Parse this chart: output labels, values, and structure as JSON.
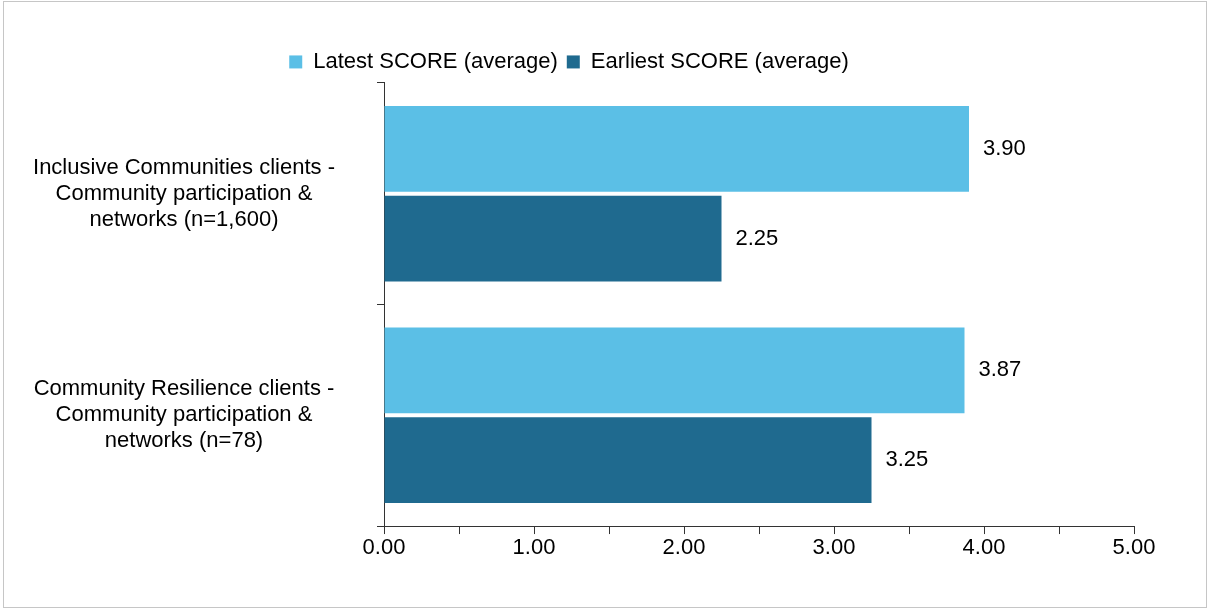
{
  "chart_data": {
    "type": "bar",
    "orientation": "horizontal",
    "categories": [
      "Inclusive Communities clients - Community participation & networks (n=1,600)",
      "Community Resilience clients - Community participation & networks (n=78)"
    ],
    "series": [
      {
        "name": "Latest SCORE (average)",
        "color": "#5bbfe6",
        "values": [
          3.9,
          3.87
        ],
        "value_labels": [
          "3.90",
          "3.87"
        ]
      },
      {
        "name": "Earliest SCORE (average)",
        "color": "#1f6a8f",
        "values": [
          2.25,
          3.25
        ],
        "value_labels": [
          "2.25",
          "3.25"
        ]
      }
    ],
    "xlim": [
      0,
      5
    ],
    "xticks": [
      {
        "value": 0,
        "label": "0.00"
      },
      {
        "value": 0.5,
        "label": null
      },
      {
        "value": 1,
        "label": "1.00"
      },
      {
        "value": 1.5,
        "label": null
      },
      {
        "value": 2,
        "label": "2.00"
      },
      {
        "value": 2.5,
        "label": null
      },
      {
        "value": 3,
        "label": "3.00"
      },
      {
        "value": 3.5,
        "label": null
      },
      {
        "value": 4,
        "label": "4.00"
      },
      {
        "value": 4.5,
        "label": null
      },
      {
        "value": 5,
        "label": "5.00"
      }
    ],
    "legend": "top"
  }
}
